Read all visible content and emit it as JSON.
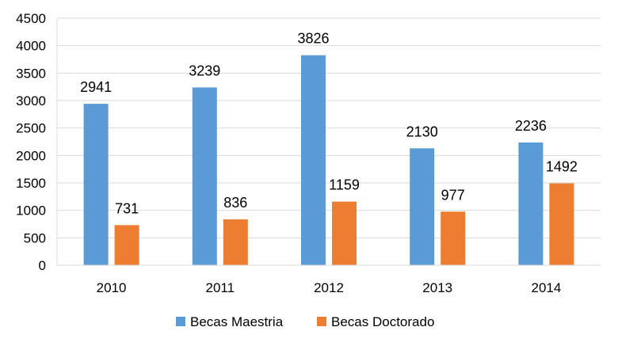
{
  "chart_data": {
    "type": "bar",
    "title": "",
    "xlabel": "",
    "ylabel": "",
    "categories": [
      "2010",
      "2011",
      "2012",
      "2013",
      "2014"
    ],
    "series": [
      {
        "name": "Becas Maestria",
        "color": "#5B9BD5",
        "values": [
          2941,
          3239,
          3826,
          2130,
          2236
        ]
      },
      {
        "name": "Becas Doctorado",
        "color": "#ED7D31",
        "values": [
          731,
          836,
          1159,
          977,
          1492
        ]
      }
    ],
    "ylim": [
      0,
      4500
    ],
    "yticks": [
      "0",
      "500",
      "1000",
      "1500",
      "2000",
      "2500",
      "3000",
      "3500",
      "4000",
      "4500"
    ],
    "grid": true,
    "legend": "bottom",
    "data_labels": true
  }
}
